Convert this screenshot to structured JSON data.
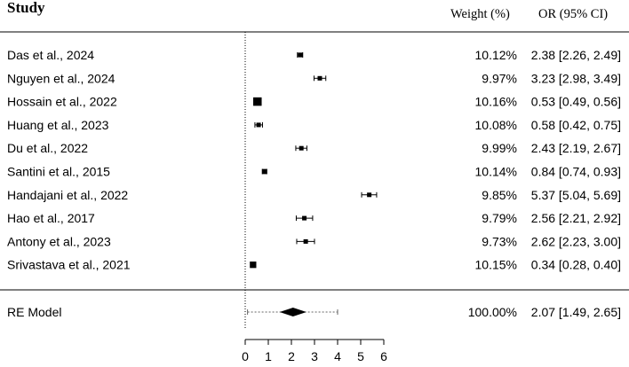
{
  "header": {
    "study": "Study",
    "weight": "Weight (%)",
    "or": "OR (95% CI)"
  },
  "chart_data": {
    "type": "forest",
    "xlim": [
      0,
      6
    ],
    "x_ticks": [
      0,
      1,
      2,
      3,
      4,
      5,
      6
    ],
    "reference_line": 0,
    "studies": [
      {
        "label": "Das et al., 2024",
        "or": 2.38,
        "lo": 2.26,
        "hi": 2.49,
        "weight": 10.12,
        "weight_text": "10.12%",
        "ci_text": "2.38 [2.26, 2.49]"
      },
      {
        "label": "Nguyen et al., 2024",
        "or": 3.23,
        "lo": 2.98,
        "hi": 3.49,
        "weight": 9.97,
        "weight_text": "9.97%",
        "ci_text": "3.23 [2.98, 3.49]"
      },
      {
        "label": "Hossain et al., 2022",
        "or": 0.53,
        "lo": 0.49,
        "hi": 0.56,
        "weight": 10.16,
        "weight_text": "10.16%",
        "ci_text": "0.53 [0.49, 0.56]"
      },
      {
        "label": "Huang et al., 2023",
        "or": 0.58,
        "lo": 0.42,
        "hi": 0.75,
        "weight": 10.08,
        "weight_text": "10.08%",
        "ci_text": "0.58 [0.42, 0.75]"
      },
      {
        "label": "Du et al., 2022",
        "or": 2.43,
        "lo": 2.19,
        "hi": 2.67,
        "weight": 9.99,
        "weight_text": "9.99%",
        "ci_text": "2.43 [2.19, 2.67]"
      },
      {
        "label": "Santini et al., 2015",
        "or": 0.84,
        "lo": 0.74,
        "hi": 0.93,
        "weight": 10.14,
        "weight_text": "10.14%",
        "ci_text": "0.84 [0.74, 0.93]"
      },
      {
        "label": "Handajani et al., 2022",
        "or": 5.37,
        "lo": 5.04,
        "hi": 5.69,
        "weight": 9.85,
        "weight_text": "9.85%",
        "ci_text": "5.37 [5.04, 5.69]"
      },
      {
        "label": "Hao et al., 2017",
        "or": 2.56,
        "lo": 2.21,
        "hi": 2.92,
        "weight": 9.79,
        "weight_text": "9.79%",
        "ci_text": "2.56 [2.21, 2.92]"
      },
      {
        "label": "Antony et al., 2023",
        "or": 2.62,
        "lo": 2.23,
        "hi": 3.0,
        "weight": 9.73,
        "weight_text": "9.73%",
        "ci_text": "2.62 [2.23, 3.00]"
      },
      {
        "label": "Srivastava et al., 2021",
        "or": 0.34,
        "lo": 0.28,
        "hi": 0.4,
        "weight": 10.15,
        "weight_text": "10.15%",
        "ci_text": "0.34 [0.28, 0.40]"
      }
    ],
    "summary": {
      "label": "RE Model",
      "or": 2.07,
      "lo": 1.49,
      "hi": 2.65,
      "pi_lo": 0.1,
      "pi_hi": 4.0,
      "weight_text": "100.00%",
      "ci_text": "2.07 [1.49, 2.65]"
    }
  }
}
